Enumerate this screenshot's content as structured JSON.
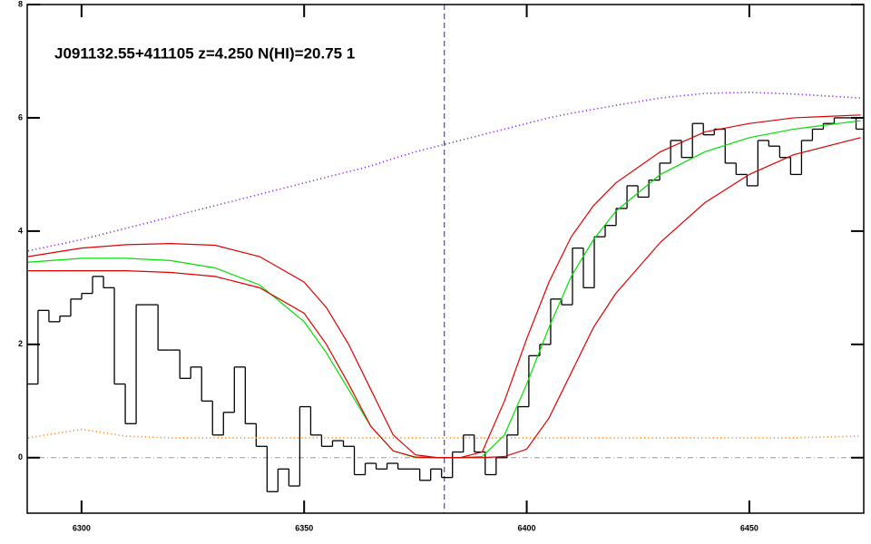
{
  "chart_data": {
    "type": "spectrum",
    "title": "J091132.55+411105 z=4.250 N(HI)=20.75 1",
    "xlim": [
      6287.8,
      6475.7
    ],
    "ylim": [
      -0.98,
      8.0
    ],
    "xticks": [
      6300,
      6350,
      6400,
      6450
    ],
    "yticks": [
      0,
      2,
      4,
      6,
      8
    ],
    "vline": 6381.5,
    "vline_color": "#2020c0",
    "hline": 0,
    "hline_color": "#999999",
    "series": [
      {
        "style": "step",
        "color": "#000000",
        "x": [
          6289.0,
          6291.45,
          6293.9,
          6296.35,
          6298.8,
          6301.25,
          6303.7,
          6306.15,
          6308.6,
          6311.05,
          6313.5,
          6315.95,
          6318.4,
          6320.85,
          6323.3,
          6325.75,
          6328.2,
          6330.65,
          6333.1,
          6335.55,
          6338.0,
          6340.45,
          6342.9,
          6345.35,
          6347.8,
          6350.25,
          6352.7,
          6355.15,
          6357.6,
          6360.05,
          6362.5,
          6364.95,
          6367.4,
          6369.85,
          6372.3,
          6374.75,
          6377.2,
          6379.65,
          6382.1,
          6384.55,
          6387.0,
          6389.45,
          6391.9,
          6394.35,
          6396.8,
          6399.25,
          6401.7,
          6404.15,
          6406.6,
          6409.05,
          6411.5,
          6413.95,
          6416.4,
          6418.85,
          6421.3,
          6423.75,
          6426.2,
          6428.65,
          6431.1,
          6433.55,
          6436.0,
          6438.45,
          6440.9,
          6443.35,
          6445.8,
          6448.25,
          6450.7,
          6453.15,
          6455.6,
          6458.05,
          6460.5,
          6462.95,
          6465.4,
          6467.85,
          6470.3,
          6472.75,
          6475.2
        ],
        "values": [
          1.3,
          2.6,
          2.4,
          2.5,
          2.8,
          2.9,
          3.2,
          3.0,
          1.3,
          0.6,
          2.7,
          2.7,
          1.9,
          1.9,
          1.4,
          1.6,
          1.0,
          0.4,
          0.8,
          1.6,
          0.6,
          0.2,
          -0.6,
          -0.2,
          -0.5,
          0.9,
          0.4,
          0.2,
          0.3,
          0.2,
          -0.3,
          -0.1,
          -0.2,
          -0.1,
          -0.2,
          -0.2,
          -0.4,
          -0.2,
          -0.35,
          0.1,
          0.4,
          0.1,
          -0.3,
          0.0,
          0.4,
          0.9,
          1.8,
          2.0,
          2.8,
          2.7,
          3.7,
          3.0,
          3.9,
          4.1,
          4.4,
          4.8,
          4.6,
          4.9,
          5.2,
          5.6,
          5.3,
          5.9,
          5.7,
          5.8,
          5.2,
          5.0,
          4.8,
          5.6,
          5.5,
          5.3,
          5.0,
          5.6,
          5.8,
          5.9,
          6.0,
          6.0,
          5.8
        ]
      },
      {
        "style": "dotted",
        "color": "#8a2be2",
        "x": [
          6288,
          6300,
          6310,
          6320,
          6330,
          6340,
          6350,
          6355,
          6360,
          6365,
          6370,
          6375,
          6380,
          6385,
          6390,
          6395,
          6400,
          6405,
          6410,
          6415,
          6420,
          6430,
          6440,
          6450,
          6460,
          6475
        ],
        "values": [
          3.65,
          3.85,
          4.05,
          4.25,
          4.45,
          4.65,
          4.85,
          4.95,
          5.05,
          5.15,
          5.28,
          5.4,
          5.5,
          5.6,
          5.7,
          5.8,
          5.9,
          6.0,
          6.08,
          6.15,
          6.22,
          6.35,
          6.43,
          6.45,
          6.42,
          6.35
        ]
      },
      {
        "style": "dotted",
        "color": "#ff8c1a",
        "x": [
          6288,
          6300,
          6310,
          6320,
          6330,
          6340,
          6350,
          6355,
          6360,
          6365,
          6370,
          6375,
          6380,
          6385,
          6390,
          6395,
          6400,
          6405,
          6410,
          6415,
          6420,
          6430,
          6440,
          6450,
          6460,
          6475
        ],
        "values": [
          0.35,
          0.5,
          0.38,
          0.35,
          0.35,
          0.35,
          0.35,
          0.35,
          0.35,
          0.35,
          0.35,
          0.35,
          0.35,
          0.35,
          0.35,
          0.35,
          0.35,
          0.35,
          0.35,
          0.35,
          0.35,
          0.35,
          0.35,
          0.35,
          0.35,
          0.38
        ]
      },
      {
        "style": "solid",
        "color": "#00e000",
        "x": [
          6288,
          6300,
          6310,
          6320,
          6330,
          6340,
          6350,
          6355,
          6360,
          6365,
          6370,
          6375,
          6380,
          6385,
          6390,
          6395,
          6400,
          6405,
          6410,
          6415,
          6420,
          6430,
          6440,
          6450,
          6460,
          6475
        ],
        "values": [
          3.45,
          3.52,
          3.52,
          3.48,
          3.35,
          3.05,
          2.4,
          1.85,
          1.2,
          0.55,
          0.12,
          0.0,
          0.0,
          0.0,
          0.02,
          0.4,
          1.3,
          2.3,
          3.2,
          3.85,
          4.35,
          5.0,
          5.4,
          5.65,
          5.8,
          5.95
        ]
      },
      {
        "style": "solid",
        "color": "#dd0000",
        "x": [
          6288,
          6300,
          6310,
          6320,
          6330,
          6340,
          6350,
          6355,
          6360,
          6365,
          6370,
          6375,
          6380,
          6385,
          6390,
          6395,
          6400,
          6405,
          6410,
          6415,
          6420,
          6430,
          6440,
          6450,
          6460,
          6475
        ],
        "values": [
          3.55,
          3.7,
          3.76,
          3.78,
          3.75,
          3.55,
          3.1,
          2.65,
          2.0,
          1.2,
          0.4,
          0.05,
          0.0,
          0.0,
          0.1,
          1.0,
          2.1,
          3.1,
          3.9,
          4.45,
          4.85,
          5.4,
          5.75,
          5.9,
          6.0,
          6.05
        ]
      },
      {
        "style": "solid",
        "color": "#dd0000",
        "x": [
          6288,
          6300,
          6310,
          6320,
          6330,
          6340,
          6350,
          6355,
          6360,
          6365,
          6370,
          6375,
          6380,
          6385,
          6390,
          6395,
          6400,
          6405,
          6410,
          6415,
          6420,
          6430,
          6440,
          6450,
          6460,
          6475
        ],
        "values": [
          3.3,
          3.3,
          3.3,
          3.27,
          3.2,
          3.0,
          2.55,
          2.0,
          1.3,
          0.55,
          0.12,
          0.01,
          0.0,
          0.0,
          0.0,
          0.02,
          0.15,
          0.7,
          1.5,
          2.3,
          2.9,
          3.8,
          4.5,
          5.0,
          5.35,
          5.65
        ]
      }
    ]
  }
}
